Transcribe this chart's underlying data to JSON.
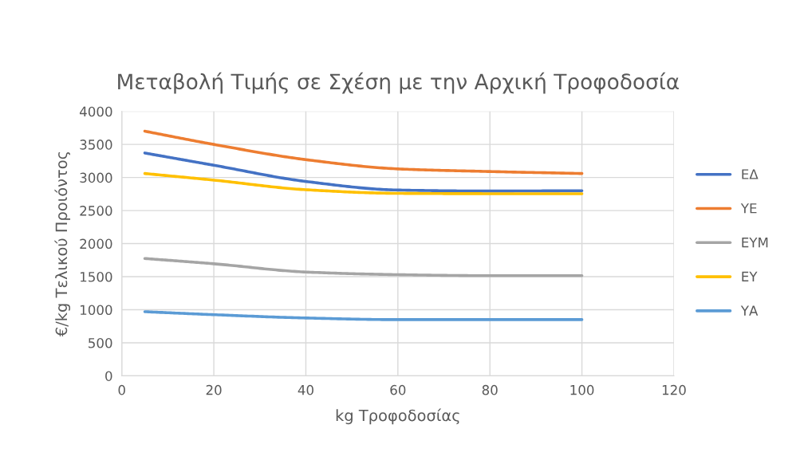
{
  "chart_data": {
    "type": "line",
    "title": "Μεταβολή Τιμής σε Σχέση με την Αρχική Τροφοδοσία",
    "xlabel": "kg Τροφοδοσίας",
    "ylabel": "€/kg Τελικού Προιόντος",
    "x": [
      5,
      20,
      40,
      60,
      80,
      100
    ],
    "series": [
      {
        "name": "ΕΔ",
        "color": "#4472c4",
        "values": [
          3370,
          3185,
          2940,
          2810,
          2795,
          2800
        ]
      },
      {
        "name": "ΥΕ",
        "color": "#ed7d31",
        "values": [
          3700,
          3500,
          3270,
          3130,
          3090,
          3060
        ]
      },
      {
        "name": "ΕΥΜ",
        "color": "#a5a5a5",
        "values": [
          1775,
          1695,
          1570,
          1530,
          1515,
          1515
        ]
      },
      {
        "name": "ΕΥ",
        "color": "#ffc000",
        "values": [
          3060,
          2960,
          2815,
          2760,
          2755,
          2755
        ]
      },
      {
        "name": "ΥΑ",
        "color": "#5b9bd5",
        "values": [
          970,
          925,
          875,
          850,
          850,
          850
        ]
      }
    ],
    "xlim": [
      0,
      120
    ],
    "xticks": [
      0,
      20,
      40,
      60,
      80,
      100,
      120
    ],
    "ylim": [
      0,
      4000
    ],
    "yticks": [
      0,
      500,
      1000,
      1500,
      2000,
      2500,
      3000,
      3500,
      4000
    ],
    "grid": true,
    "legend": "right",
    "marker": "none",
    "line_style": "solid"
  }
}
